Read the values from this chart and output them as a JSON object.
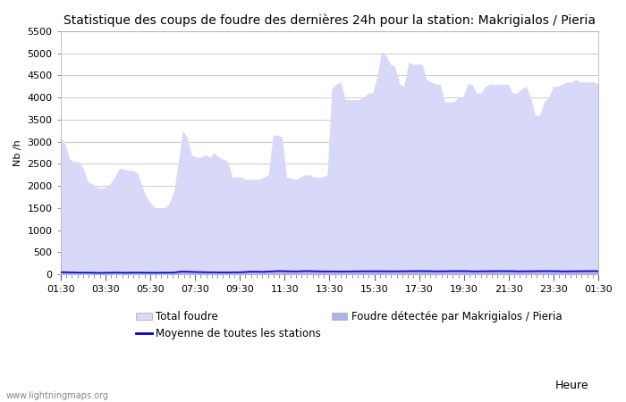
{
  "title": "Statistique des coups de foudre des dernières 24h pour la station: Makrigialos / Pieria",
  "ylabel": "Nb /h",
  "xlabel": "Heure",
  "watermark": "www.lightningmaps.org",
  "ylim": [
    0,
    5500
  ],
  "yticks": [
    0,
    500,
    1000,
    1500,
    2000,
    2500,
    3000,
    3500,
    4000,
    4500,
    5000,
    5500
  ],
  "time_labels": [
    "01:30",
    "03:30",
    "05:30",
    "07:30",
    "09:30",
    "11:30",
    "13:30",
    "15:30",
    "17:30",
    "19:30",
    "21:30",
    "23:30",
    "01:30"
  ],
  "total_foudre_color": "#d8d8f8",
  "station_foudre_color": "#b0b0e8",
  "moyenne_color": "#0000cc",
  "background_color": "#ffffff",
  "grid_color": "#cccccc",
  "title_fontsize": 10,
  "tick_fontsize": 8,
  "legend_fontsize": 8.5,
  "total_foudre_y": [
    3100,
    2950,
    2600,
    2550,
    2550,
    2400,
    2100,
    2050,
    1970,
    1950,
    1970,
    2050,
    2200,
    2400,
    2380,
    2350,
    2350,
    2300,
    2000,
    1750,
    1600,
    1500,
    1480,
    1500,
    1600,
    1850,
    2500,
    3250,
    3100,
    2700,
    2650,
    2650,
    2700,
    2650,
    2750,
    2650,
    2600,
    2550,
    2200,
    2200,
    2200,
    2150,
    2150,
    2150,
    2150,
    2200,
    2250,
    3150,
    3150,
    3100,
    2200,
    2180,
    2150,
    2200,
    2250,
    2250,
    2200,
    2200,
    2200,
    2250,
    4200,
    4300,
    4350,
    3950,
    3950,
    3950,
    3950,
    4000,
    4100,
    4100,
    4450,
    5050,
    4950,
    4750,
    4700,
    4300,
    4250,
    4800,
    4750,
    4750,
    4750,
    4400,
    4350,
    4300,
    4300,
    3900,
    3900,
    3900,
    4000,
    4000,
    4300,
    4300,
    4100,
    4100,
    4250,
    4300,
    4300,
    4300,
    4300,
    4300,
    4100,
    4100,
    4200,
    4250,
    4000,
    3600,
    3600,
    3900,
    4000,
    4250,
    4250,
    4300,
    4350,
    4350,
    4400,
    4350,
    4350,
    4350,
    4350,
    4300
  ],
  "station_foudre_y": [
    50,
    50,
    45,
    45,
    40,
    40,
    40,
    40,
    35,
    35,
    38,
    38,
    42,
    42,
    38,
    38,
    42,
    42,
    40,
    40,
    38,
    38,
    40,
    40,
    40,
    42,
    55,
    65,
    60,
    58,
    55,
    52,
    50,
    48,
    48,
    46,
    46,
    44,
    48,
    48,
    50,
    55,
    62,
    62,
    60,
    58,
    65,
    70,
    75,
    75,
    72,
    70,
    68,
    72,
    75,
    75,
    72,
    70,
    68,
    68,
    68,
    68,
    66,
    66,
    68,
    70,
    70,
    72,
    72,
    72,
    72,
    72,
    72,
    70,
    70,
    72,
    72,
    74,
    74,
    76,
    76,
    74,
    74,
    70,
    70,
    72,
    74,
    76,
    76,
    74,
    74,
    70,
    70,
    72,
    72,
    74,
    74,
    76,
    76,
    74,
    74,
    70,
    70,
    72,
    72,
    74,
    74,
    76,
    76,
    74,
    74,
    70,
    70,
    72,
    72,
    74,
    74,
    76,
    76,
    74
  ],
  "moyenne_y": [
    50,
    50,
    45,
    45,
    40,
    40,
    40,
    40,
    35,
    35,
    38,
    38,
    42,
    42,
    38,
    38,
    42,
    42,
    40,
    40,
    38,
    38,
    40,
    40,
    40,
    42,
    55,
    65,
    60,
    58,
    55,
    52,
    50,
    48,
    48,
    46,
    46,
    44,
    48,
    48,
    50,
    55,
    62,
    62,
    60,
    58,
    65,
    70,
    75,
    75,
    72,
    70,
    68,
    72,
    75,
    75,
    72,
    70,
    68,
    68,
    68,
    68,
    66,
    66,
    68,
    70,
    70,
    72,
    72,
    72,
    72,
    72,
    72,
    70,
    70,
    72,
    72,
    74,
    74,
    76,
    76,
    74,
    74,
    70,
    70,
    72,
    74,
    76,
    76,
    74,
    74,
    70,
    70,
    72,
    72,
    74,
    74,
    76,
    76,
    74,
    74,
    70,
    70,
    72,
    72,
    74,
    74,
    76,
    76,
    74,
    74,
    70,
    70,
    72,
    72,
    74,
    74,
    76,
    76,
    74
  ]
}
